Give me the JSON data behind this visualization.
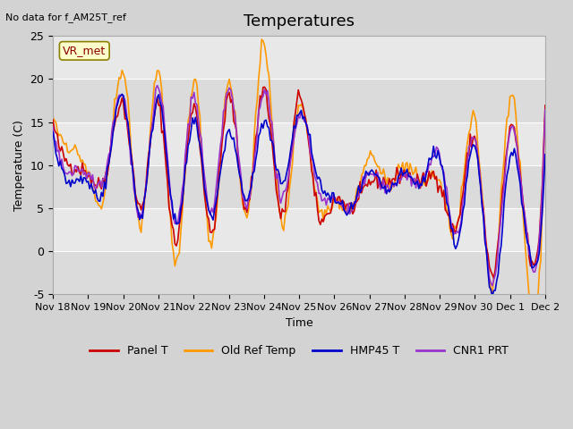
{
  "title": "Temperatures",
  "xlabel": "Time",
  "ylabel": "Temperature (C)",
  "ylim": [
    -5,
    25
  ],
  "annotation_top": "No data for f_AM25T_ref",
  "vr_met_label": "VR_met",
  "legend_entries": [
    "Panel T",
    "Old Ref Temp",
    "HMP45 T",
    "CNR1 PRT"
  ],
  "line_colors": [
    "#cc0000",
    "#ff9900",
    "#0000cc",
    "#9933cc"
  ],
  "background_color": "#d3d3d3",
  "plot_bg_color": "#e8e8e8",
  "xtick_labels": [
    "Nov 18",
    "Nov 19",
    "Nov 20",
    "Nov 21",
    "Nov 22",
    "Nov 23",
    "Nov 24",
    "Nov 25",
    "Nov 26",
    "Nov 27",
    "Nov 28",
    "Nov 29",
    "Nov 30",
    "Dec 1",
    "Dec 2"
  ],
  "ytick_labels": [
    "-5",
    "0",
    "5",
    "10",
    "15",
    "20",
    "25"
  ],
  "ytick_values": [
    -5,
    0,
    5,
    10,
    15,
    20,
    25
  ],
  "num_points": 336,
  "seed": 42
}
